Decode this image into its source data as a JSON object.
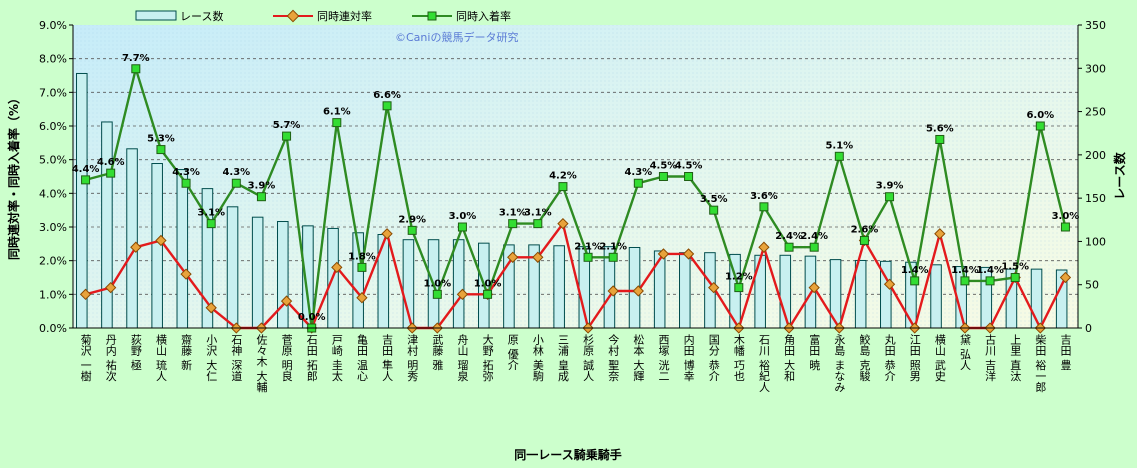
{
  "chart_data": {
    "type": "bar",
    "xlabel": "同一レース騎乗騎手",
    "ylabel_left": "同時連対率・同時入着率（%）",
    "ylabel_right": "レース数",
    "ylim_left": [
      0,
      9
    ],
    "ylim_right": [
      0,
      350
    ],
    "yticks_left": [
      "0.0%",
      "1.0%",
      "2.0%",
      "3.0%",
      "4.0%",
      "5.0%",
      "6.0%",
      "7.0%",
      "8.0%",
      "9.0%"
    ],
    "yticks_right": [
      "0",
      "50",
      "100",
      "150",
      "200",
      "250",
      "300",
      "350"
    ],
    "watermark": "©Caniの競馬データ研究",
    "categories": [
      "菊沢 一樹",
      "丹内 祐次",
      "荻野 極",
      "横山 琉人",
      "齋藤 新",
      "小沢 大仁",
      "石神 深道",
      "佐々木 大輔",
      "菅原 明良",
      "石田 拓郎",
      "戸崎 圭太",
      "亀田 温心",
      "吉田 隼人",
      "津村 明秀",
      "武藤 雅",
      "舟山 瑠泉",
      "大野 拓弥",
      "原 優介",
      "小林 美駒",
      "三浦 皇成",
      "杉原 誠人",
      "今村 聖奈",
      "松本 大輝",
      "西塚 洸二",
      "内田 博幸",
      "国分 恭介",
      "木幡 巧也",
      "石川 裕紀人",
      "角田 大和",
      "富田 暁",
      "永島 まなみ",
      "鮫島 克駿",
      "丸田 恭介",
      "江田 照男",
      "横山 武史",
      "黛 弘人",
      "古川 吉洋",
      "上里 直汰",
      "柴田 裕一郎",
      "吉田 豊"
    ],
    "series": [
      {
        "name": "レース数",
        "type": "bar",
        "axis": "right",
        "color": "#c8f0f0",
        "values": [
          294,
          238,
          207,
          190,
          183,
          161,
          140,
          128,
          123,
          118,
          115,
          110,
          108,
          102,
          102,
          102,
          98,
          96,
          96,
          95,
          94,
          94,
          93,
          89,
          87,
          87,
          85,
          84,
          84,
          83,
          79,
          78,
          77,
          76,
          73,
          71,
          70,
          68,
          68,
          67
        ]
      },
      {
        "name": "同時連対率",
        "type": "line",
        "axis": "left",
        "color": "#e31a1c",
        "values": [
          1.0,
          1.2,
          2.4,
          2.6,
          1.6,
          0.6,
          0.0,
          0.0,
          0.8,
          0.0,
          1.8,
          0.9,
          2.8,
          0.0,
          0.0,
          1.0,
          1.0,
          2.1,
          2.1,
          3.1,
          0.0,
          1.1,
          1.1,
          2.2,
          2.2,
          1.2,
          0.0,
          2.4,
          0.0,
          1.2,
          0.0,
          2.6,
          1.3,
          0.0,
          2.8,
          0.0,
          0.0,
          1.5,
          0.0,
          1.5
        ]
      },
      {
        "name": "同時入着率",
        "type": "line",
        "axis": "left",
        "color": "#2e8b22",
        "values": [
          4.4,
          4.6,
          7.7,
          5.3,
          4.3,
          3.1,
          4.3,
          3.9,
          5.7,
          0.0,
          6.1,
          1.8,
          6.6,
          2.9,
          1.0,
          3.0,
          1.0,
          3.1,
          3.1,
          4.2,
          2.1,
          2.1,
          4.3,
          4.5,
          4.5,
          3.5,
          1.2,
          3.6,
          2.4,
          2.4,
          5.1,
          2.6,
          3.9,
          1.4,
          5.6,
          1.4,
          1.4,
          1.5,
          6.0,
          3.0
        ]
      }
    ],
    "data_labels": [
      "4.4%",
      "4.6%",
      "7.7%",
      "5.3%",
      "4.3%",
      "3.1%",
      "4.3%",
      "3.9%",
      "5.7%",
      "0.0%",
      "6.1%",
      "1.8%",
      "6.6%",
      "2.9%",
      "1.0%",
      "3.0%",
      "1.0%",
      "3.1%",
      "3.1%",
      "4.2%",
      "2.1%",
      "2.1%",
      "4.3%",
      "4.5%",
      "4.5%",
      "3.5%",
      "1.2%",
      "3.6%",
      "2.4%",
      "2.4%",
      "5.1%",
      "2.6%",
      "3.9%",
      "1.4%",
      "5.6%",
      "1.4%",
      "1.4%",
      "1.5%",
      "6.0%",
      "3.0%"
    ],
    "legend_position": "top",
    "grid": "horizontal-dashed"
  }
}
